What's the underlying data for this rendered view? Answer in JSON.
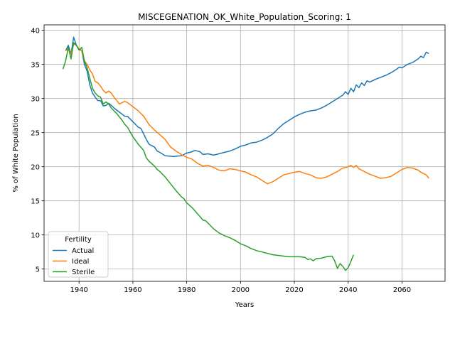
{
  "chart_data": {
    "type": "line",
    "title": "MISCEGENATION_OK_White_Population_Scoring: 1",
    "xlabel": "Years",
    "ylabel": "% of White Population",
    "xlim": [
      1927,
      2076
    ],
    "ylim": [
      3.2,
      40.8
    ],
    "xticks": [
      1940,
      1960,
      1980,
      2000,
      2020,
      2040,
      2060
    ],
    "yticks": [
      5,
      10,
      15,
      20,
      25,
      30,
      35,
      40
    ],
    "grid": true,
    "legend": {
      "title": "Fertility",
      "placement": "lower-left"
    },
    "series": [
      {
        "name": "Actual",
        "color": "#1f77b4",
        "points": [
          [
            1935,
            37
          ],
          [
            1936,
            37.8
          ],
          [
            1937,
            36.5
          ],
          [
            1938,
            39
          ],
          [
            1939,
            37.8
          ],
          [
            1940,
            37.2
          ],
          [
            1941,
            37
          ],
          [
            1942,
            35
          ],
          [
            1943,
            34
          ],
          [
            1944,
            32
          ],
          [
            1945,
            30.8
          ],
          [
            1946,
            30.2
          ],
          [
            1947,
            29.7
          ],
          [
            1948,
            29.7
          ],
          [
            1949,
            28.9
          ],
          [
            1950,
            29
          ],
          [
            1951,
            29.3
          ],
          [
            1952,
            29
          ],
          [
            1953,
            28.6
          ],
          [
            1955,
            28
          ],
          [
            1957,
            27.4
          ],
          [
            1958,
            27.4
          ],
          [
            1960,
            26.6
          ],
          [
            1962,
            25.8
          ],
          [
            1963,
            25.6
          ],
          [
            1964,
            24.8
          ],
          [
            1965,
            24
          ],
          [
            1966,
            23.3
          ],
          [
            1968,
            22.9
          ],
          [
            1969,
            22.3
          ],
          [
            1970,
            22.1
          ],
          [
            1972,
            21.6
          ],
          [
            1975,
            21.5
          ],
          [
            1978,
            21.6
          ],
          [
            1980,
            22
          ],
          [
            1982,
            22.2
          ],
          [
            1983,
            22.4
          ],
          [
            1985,
            22.2
          ],
          [
            1986,
            21.8
          ],
          [
            1988,
            21.9
          ],
          [
            1990,
            21.7
          ],
          [
            1992,
            21.9
          ],
          [
            1994,
            22.1
          ],
          [
            1996,
            22.3
          ],
          [
            1998,
            22.6
          ],
          [
            2000,
            23
          ],
          [
            2002,
            23.2
          ],
          [
            2004,
            23.5
          ],
          [
            2006,
            23.6
          ],
          [
            2008,
            23.9
          ],
          [
            2010,
            24.3
          ],
          [
            2012,
            24.8
          ],
          [
            2014,
            25.6
          ],
          [
            2016,
            26.3
          ],
          [
            2018,
            26.8
          ],
          [
            2020,
            27.3
          ],
          [
            2022,
            27.7
          ],
          [
            2024,
            28
          ],
          [
            2026,
            28.2
          ],
          [
            2028,
            28.3
          ],
          [
            2030,
            28.6
          ],
          [
            2032,
            29
          ],
          [
            2034,
            29.5
          ],
          [
            2036,
            30
          ],
          [
            2038,
            30.5
          ],
          [
            2039,
            31
          ],
          [
            2040,
            30.6
          ],
          [
            2041,
            31.5
          ],
          [
            2042,
            31
          ],
          [
            2043,
            32
          ],
          [
            2044,
            31.6
          ],
          [
            2045,
            32.3
          ],
          [
            2046,
            31.9
          ],
          [
            2047,
            32.6
          ],
          [
            2048,
            32.4
          ],
          [
            2050,
            32.8
          ],
          [
            2052,
            33.1
          ],
          [
            2054,
            33.4
          ],
          [
            2056,
            33.8
          ],
          [
            2058,
            34.3
          ],
          [
            2059,
            34.6
          ],
          [
            2060,
            34.5
          ],
          [
            2062,
            35
          ],
          [
            2064,
            35.3
          ],
          [
            2066,
            35.8
          ],
          [
            2067,
            36.2
          ],
          [
            2068,
            36
          ],
          [
            2069,
            36.8
          ],
          [
            2070,
            36.6
          ]
        ]
      },
      {
        "name": "Ideal",
        "color": "#ff7f0e",
        "points": [
          [
            1935,
            37
          ],
          [
            1936,
            37.3
          ],
          [
            1937,
            36.5
          ],
          [
            1938,
            38
          ],
          [
            1939,
            37.8
          ],
          [
            1940,
            37.3
          ],
          [
            1941,
            37
          ],
          [
            1942,
            35.5
          ],
          [
            1943,
            35
          ],
          [
            1944,
            34.2
          ],
          [
            1945,
            33.6
          ],
          [
            1946,
            32.5
          ],
          [
            1947,
            32.3
          ],
          [
            1948,
            31.8
          ],
          [
            1949,
            31.2
          ],
          [
            1950,
            30.8
          ],
          [
            1951,
            31.1
          ],
          [
            1952,
            30.8
          ],
          [
            1953,
            30.2
          ],
          [
            1955,
            29.2
          ],
          [
            1957,
            29.6
          ],
          [
            1958,
            29.4
          ],
          [
            1960,
            28.8
          ],
          [
            1962,
            28.2
          ],
          [
            1964,
            27.4
          ],
          [
            1966,
            26.2
          ],
          [
            1968,
            25.4
          ],
          [
            1970,
            24.7
          ],
          [
            1972,
            24
          ],
          [
            1974,
            22.9
          ],
          [
            1976,
            22.3
          ],
          [
            1978,
            21.8
          ],
          [
            1980,
            21.4
          ],
          [
            1982,
            21.1
          ],
          [
            1984,
            20.5
          ],
          [
            1986,
            20.1
          ],
          [
            1988,
            20.2
          ],
          [
            1990,
            19.9
          ],
          [
            1992,
            19.5
          ],
          [
            1994,
            19.4
          ],
          [
            1996,
            19.7
          ],
          [
            1998,
            19.6
          ],
          [
            2000,
            19.4
          ],
          [
            2002,
            19.2
          ],
          [
            2004,
            18.8
          ],
          [
            2006,
            18.5
          ],
          [
            2008,
            18
          ],
          [
            2010,
            17.5
          ],
          [
            2012,
            17.8
          ],
          [
            2014,
            18.3
          ],
          [
            2016,
            18.8
          ],
          [
            2018,
            19
          ],
          [
            2020,
            19.2
          ],
          [
            2022,
            19.3
          ],
          [
            2024,
            19
          ],
          [
            2026,
            18.8
          ],
          [
            2028,
            18.4
          ],
          [
            2030,
            18.3
          ],
          [
            2032,
            18.5
          ],
          [
            2034,
            18.9
          ],
          [
            2036,
            19.3
          ],
          [
            2038,
            19.8
          ],
          [
            2040,
            20
          ],
          [
            2041,
            20.2
          ],
          [
            2042,
            19.9
          ],
          [
            2043,
            20.2
          ],
          [
            2044,
            19.7
          ],
          [
            2046,
            19.3
          ],
          [
            2048,
            18.9
          ],
          [
            2050,
            18.6
          ],
          [
            2052,
            18.3
          ],
          [
            2054,
            18.4
          ],
          [
            2056,
            18.6
          ],
          [
            2058,
            19.1
          ],
          [
            2060,
            19.6
          ],
          [
            2062,
            19.9
          ],
          [
            2064,
            19.8
          ],
          [
            2066,
            19.5
          ],
          [
            2067,
            19.2
          ],
          [
            2068,
            19
          ],
          [
            2069,
            18.8
          ],
          [
            2070,
            18.3
          ]
        ]
      },
      {
        "name": "Sterile",
        "color": "#2ca02c",
        "points": [
          [
            1934,
            34.3
          ],
          [
            1935,
            35.5
          ],
          [
            1936,
            37.5
          ],
          [
            1937,
            35.8
          ],
          [
            1938,
            38.2
          ],
          [
            1939,
            37.8
          ],
          [
            1940,
            37.1
          ],
          [
            1941,
            37.5
          ],
          [
            1942,
            35.5
          ],
          [
            1943,
            34.5
          ],
          [
            1944,
            33
          ],
          [
            1945,
            31.5
          ],
          [
            1946,
            30.8
          ],
          [
            1947,
            30.4
          ],
          [
            1948,
            30.2
          ],
          [
            1949,
            29.2
          ],
          [
            1950,
            29.5
          ],
          [
            1951,
            29.2
          ],
          [
            1952,
            28.6
          ],
          [
            1954,
            27.8
          ],
          [
            1956,
            26.8
          ],
          [
            1957,
            26.2
          ],
          [
            1958,
            25.8
          ],
          [
            1959,
            25.1
          ],
          [
            1960,
            24.4
          ],
          [
            1962,
            23.3
          ],
          [
            1964,
            22.4
          ],
          [
            1965,
            21.3
          ],
          [
            1966,
            20.8
          ],
          [
            1968,
            20.1
          ],
          [
            1969,
            19.6
          ],
          [
            1970,
            19.3
          ],
          [
            1972,
            18.5
          ],
          [
            1974,
            17.5
          ],
          [
            1976,
            16.5
          ],
          [
            1978,
            15.6
          ],
          [
            1979,
            15.3
          ],
          [
            1980,
            14.7
          ],
          [
            1982,
            14
          ],
          [
            1984,
            13.1
          ],
          [
            1986,
            12.2
          ],
          [
            1987,
            12.1
          ],
          [
            1988,
            11.7
          ],
          [
            1990,
            10.9
          ],
          [
            1992,
            10.3
          ],
          [
            1994,
            9.9
          ],
          [
            1996,
            9.6
          ],
          [
            1998,
            9.2
          ],
          [
            2000,
            8.7
          ],
          [
            2002,
            8.4
          ],
          [
            2004,
            8
          ],
          [
            2006,
            7.7
          ],
          [
            2008,
            7.5
          ],
          [
            2010,
            7.3
          ],
          [
            2012,
            7.1
          ],
          [
            2014,
            7
          ],
          [
            2016,
            6.9
          ],
          [
            2018,
            6.8
          ],
          [
            2020,
            6.8
          ],
          [
            2022,
            6.8
          ],
          [
            2024,
            6.7
          ],
          [
            2025,
            6.4
          ],
          [
            2026,
            6.5
          ],
          [
            2027,
            6.2
          ],
          [
            2028,
            6.5
          ],
          [
            2030,
            6.6
          ],
          [
            2032,
            6.8
          ],
          [
            2034,
            6.9
          ],
          [
            2035,
            6.2
          ],
          [
            2036,
            5.1
          ],
          [
            2037,
            5.8
          ],
          [
            2038,
            5.4
          ],
          [
            2039,
            4.8
          ],
          [
            2040,
            5.2
          ],
          [
            2041,
            6.1
          ],
          [
            2042,
            7.1
          ]
        ]
      }
    ]
  }
}
